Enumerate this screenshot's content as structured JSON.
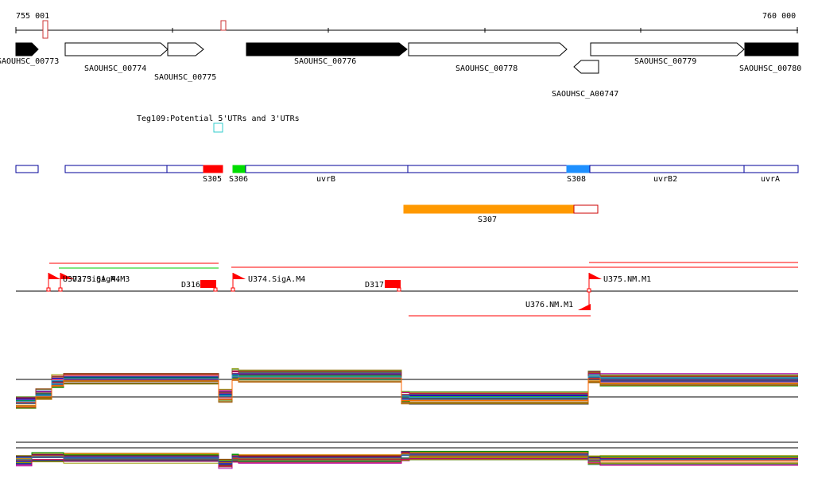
{
  "coords": {
    "start": "755 001",
    "end": "760 000"
  },
  "genes": [
    {
      "label": "SAOUHSC_00773",
      "filled": true,
      "dir": "right"
    },
    {
      "label": "SAOUHSC_00774",
      "filled": false,
      "dir": "right"
    },
    {
      "label": "SAOUHSC_00775",
      "filled": false,
      "dir": "right"
    },
    {
      "label": "SAOUHSC_00776",
      "filled": true,
      "dir": "right"
    },
    {
      "label": "SAOUHSC_00778",
      "filled": false,
      "dir": "right"
    },
    {
      "label": "SAOUHSC_A00747",
      "filled": false,
      "dir": "left"
    },
    {
      "label": "SAOUHSC_00779",
      "filled": false,
      "dir": "right"
    },
    {
      "label": "SAOUHSC_00780",
      "filled": true,
      "dir": "right"
    }
  ],
  "utr_note": "Teg109:Potential 5'UTRs and 3'UTRs",
  "segments": [
    {
      "label": "",
      "color": "#ffffff"
    },
    {
      "label": "",
      "color": "#ffffff"
    },
    {
      "label": "",
      "color": "#ffffff"
    },
    {
      "label": "S305",
      "color": "#ff0000"
    },
    {
      "label": "S306",
      "color": "#00dd00"
    },
    {
      "label": "uvrB",
      "color": "#ffffff"
    },
    {
      "label": "",
      "color": "#ffffff"
    },
    {
      "label": "S308",
      "color": "#1e90ff"
    },
    {
      "label": "uvrB2",
      "color": "#ffffff"
    },
    {
      "label": "uvrA",
      "color": "#ffffff"
    }
  ],
  "s307": {
    "label": "S307",
    "color": "#ff9900"
  },
  "promoters": [
    {
      "label": "U372.SigA.M4"
    },
    {
      "label": "U373.SigA.M3"
    },
    {
      "label": "U374.SigA.M4"
    },
    {
      "label": "U375.NM.M1"
    },
    {
      "label": "U376.NM.M1"
    }
  ],
  "terminators": [
    {
      "label": "D316"
    },
    {
      "label": "D317"
    }
  ],
  "colors": {
    "red": "#ff0000",
    "green": "#00cc00",
    "blue": "#000099",
    "orange": "#ff9900",
    "black": "#000000"
  }
}
